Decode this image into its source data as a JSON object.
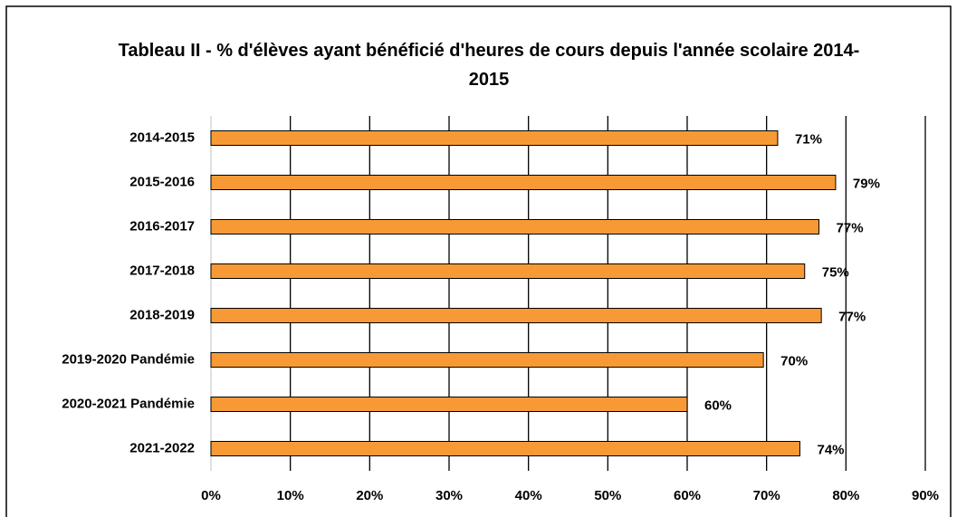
{
  "chart_data": {
    "type": "bar",
    "orientation": "horizontal",
    "title": "Tableau II -  % d'élèves ayant bénéficié d'heures de cours depuis l'année scolaire 2014-2015",
    "categories": [
      "2014-2015",
      "2015-2016",
      "2016-2017",
      "2017-2018",
      "2018-2019",
      "2019-2020 Pandémie",
      "2020-2021 Pandémie",
      "2021-2022"
    ],
    "values": [
      71.4,
      78.7,
      76.6,
      74.8,
      76.9,
      69.6,
      60.0,
      74.2
    ],
    "value_labels": [
      "71%",
      "79%",
      "77%",
      "75%",
      "77%",
      "70%",
      "60%",
      "74%"
    ],
    "color": "#f79a36",
    "xlim": [
      0,
      90
    ],
    "xticks": [
      {
        "value": 0,
        "label": "0%"
      },
      {
        "value": 10,
        "label": "10%"
      },
      {
        "value": 20,
        "label": "20%"
      },
      {
        "value": 30,
        "label": "30%"
      },
      {
        "value": 40,
        "label": "40%"
      },
      {
        "value": 50,
        "label": "50%"
      },
      {
        "value": 60,
        "label": "60%"
      },
      {
        "value": 70,
        "label": "70%"
      },
      {
        "value": 80,
        "label": "80%"
      },
      {
        "value": 90,
        "label": "90%"
      }
    ],
    "grid": true
  }
}
